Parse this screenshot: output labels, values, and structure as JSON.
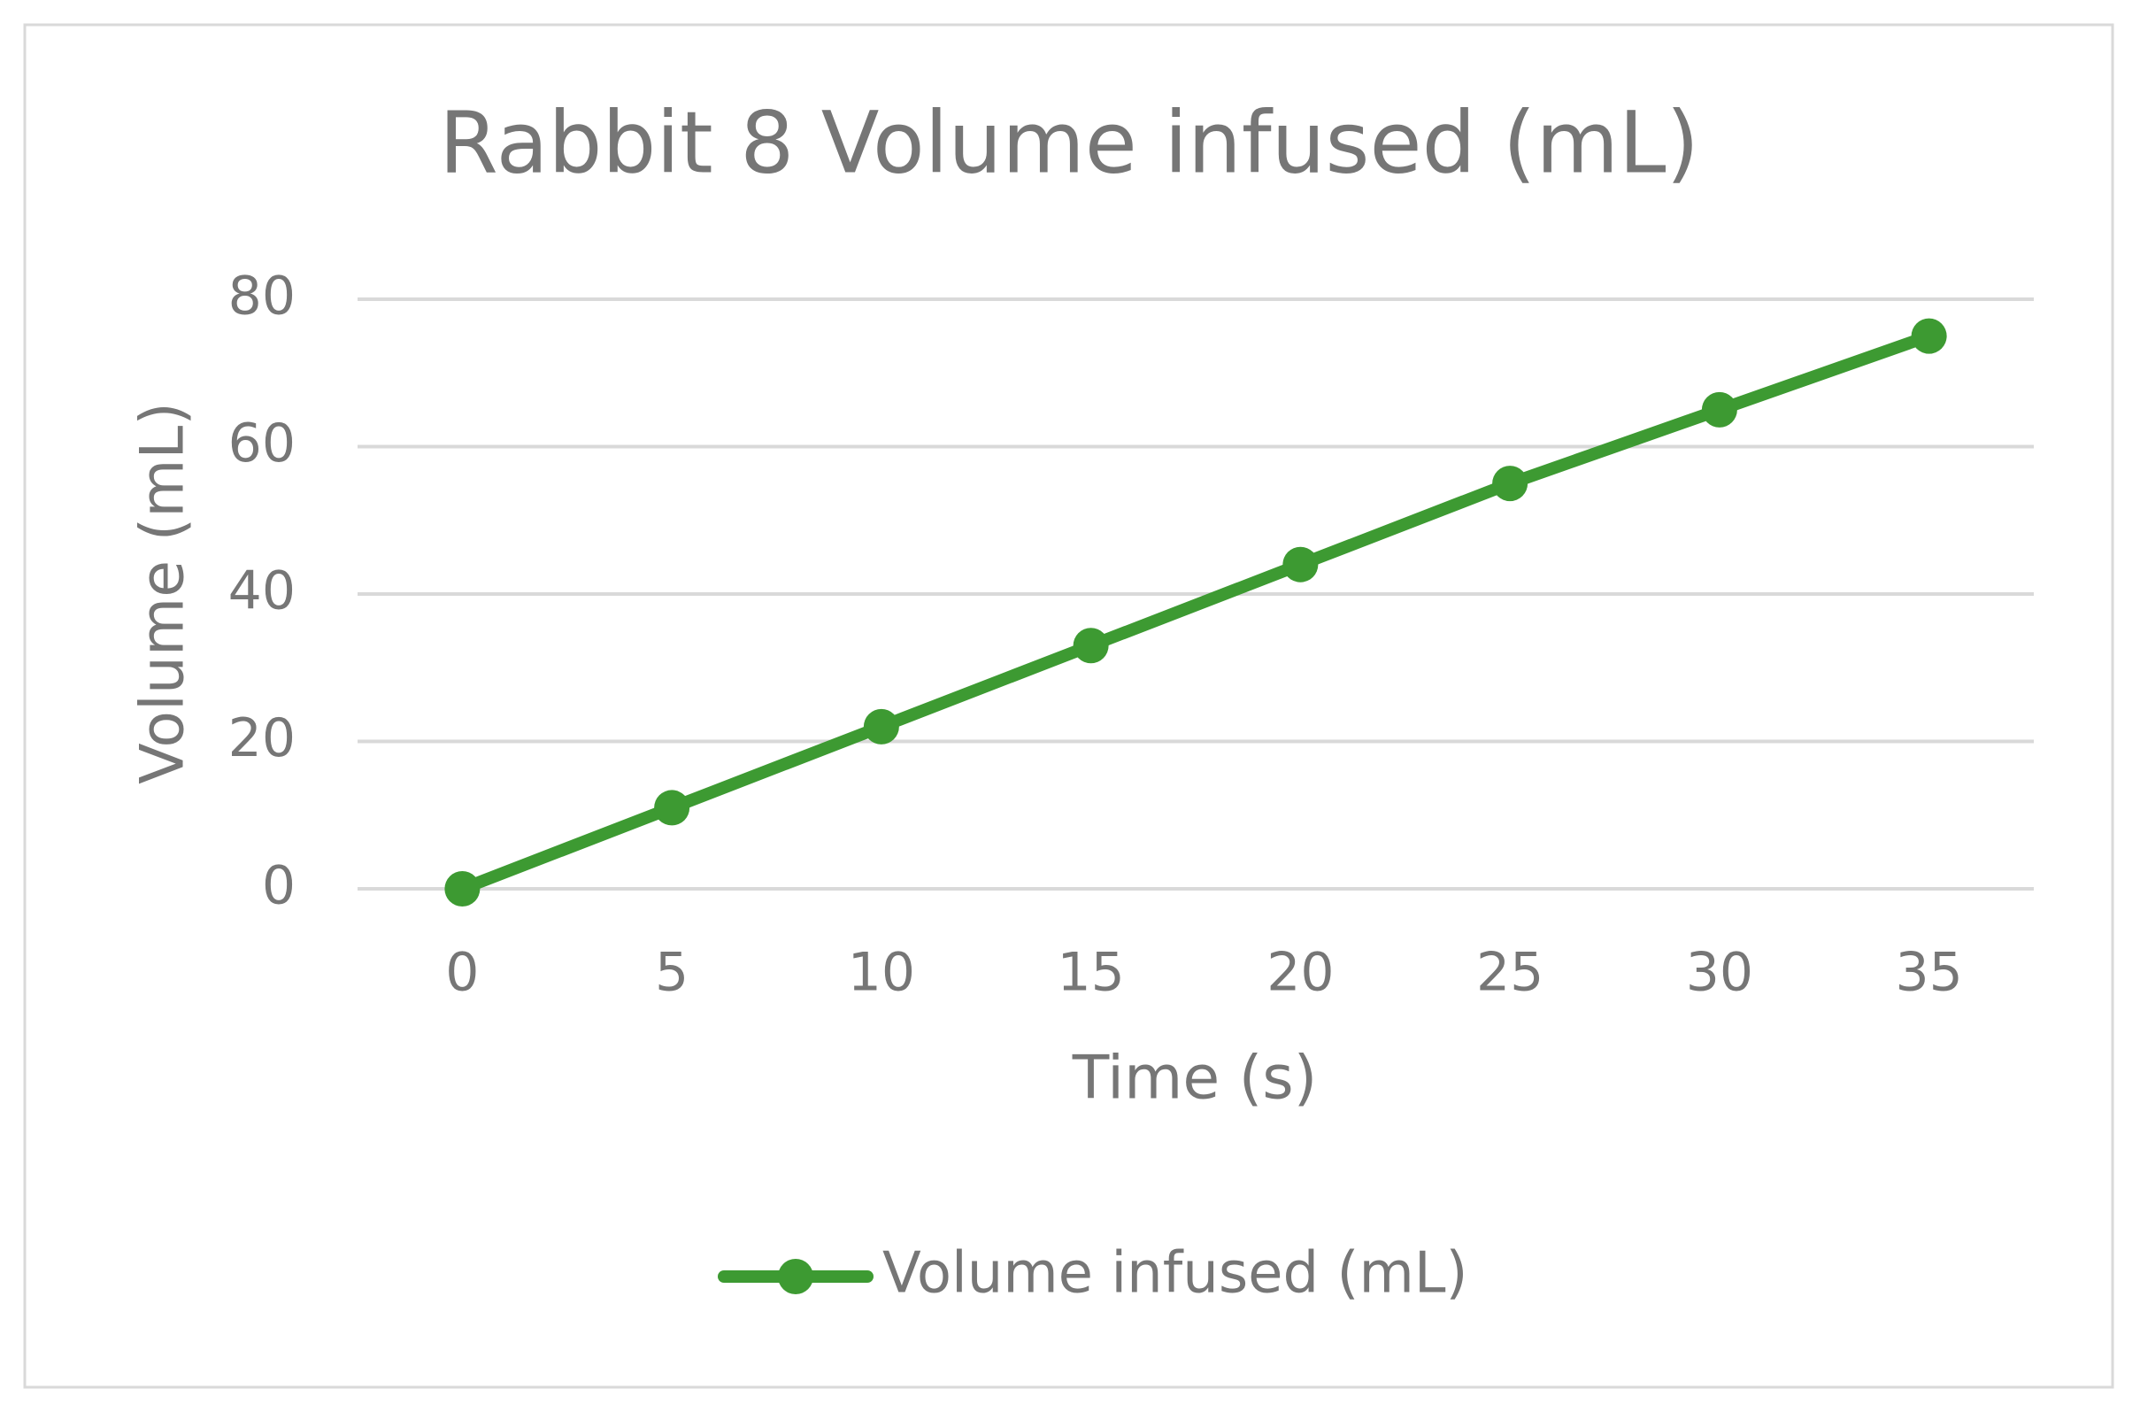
{
  "chart_data": {
    "type": "line",
    "title": "Rabbit 8 Volume infused (mL)",
    "x_label": "Time (s)",
    "y_label": "Volume (mL)",
    "categories": [
      "0",
      "5",
      "10",
      "15",
      "20",
      "25",
      "30",
      "35"
    ],
    "series": [
      {
        "name": "Volume infused (mL)",
        "color": "#3d9a32",
        "values": [
          0,
          11,
          22,
          33,
          44,
          55,
          65,
          75
        ]
      }
    ],
    "ylim": [
      0,
      80
    ],
    "yticks": [
      0,
      20,
      40,
      60,
      80
    ],
    "grid": true,
    "legend": "bottom"
  }
}
